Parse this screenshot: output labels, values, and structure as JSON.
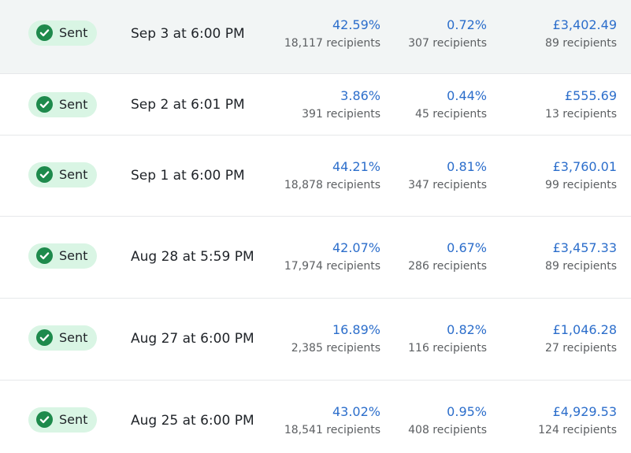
{
  "colors": {
    "badge_bg": "#d9f5e4",
    "check_green": "#1e8a4c",
    "link_blue": "#2c6ecb",
    "muted_text": "#5c5f62",
    "highlight_row": "#f2f5f5"
  },
  "icons": {
    "status": "checkmark-circle-icon"
  },
  "rows": [
    {
      "status": "Sent",
      "date": "Sep 3 at 6:00 PM",
      "open_rate": "42.59%",
      "open_recipients": "18,117 recipients",
      "click_rate": "0.72%",
      "click_recipients": "307 recipients",
      "revenue": "£3,402.49",
      "revenue_recipients": "89 recipients"
    },
    {
      "status": "Sent",
      "date": "Sep 2 at 6:01 PM",
      "open_rate": "3.86%",
      "open_recipients": "391 recipients",
      "click_rate": "0.44%",
      "click_recipients": "45 recipients",
      "revenue": "£555.69",
      "revenue_recipients": "13 recipients"
    },
    {
      "status": "Sent",
      "date": "Sep 1 at 6:00 PM",
      "open_rate": "44.21%",
      "open_recipients": "18,878 recipients",
      "click_rate": "0.81%",
      "click_recipients": "347 recipients",
      "revenue": "£3,760.01",
      "revenue_recipients": "99 recipients"
    },
    {
      "status": "Sent",
      "date": "Aug 28 at 5:59 PM",
      "open_rate": "42.07%",
      "open_recipients": "17,974 recipients",
      "click_rate": "0.67%",
      "click_recipients": "286 recipients",
      "revenue": "£3,457.33",
      "revenue_recipients": "89 recipients"
    },
    {
      "status": "Sent",
      "date": "Aug 27 at 6:00 PM",
      "open_rate": "16.89%",
      "open_recipients": "2,385 recipients",
      "click_rate": "0.82%",
      "click_recipients": "116 recipients",
      "revenue": "£1,046.28",
      "revenue_recipients": "27 recipients"
    },
    {
      "status": "Sent",
      "date": "Aug 25 at 6:00 PM",
      "open_rate": "43.02%",
      "open_recipients": "18,541 recipients",
      "click_rate": "0.95%",
      "click_recipients": "408 recipients",
      "revenue": "£4,929.53",
      "revenue_recipients": "124 recipients"
    }
  ]
}
